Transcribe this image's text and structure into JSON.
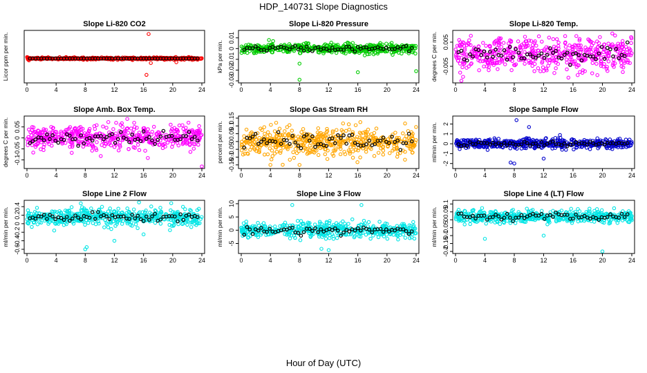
{
  "title": "HDP_140731  Slope Diagnostics",
  "x_axis_title": "Hour of Day (UTC)",
  "chart_data": [
    {
      "id": "co2",
      "type": "scatter",
      "title": "Slope Li-820 CO2",
      "ylabel": "Licor ppm per min.",
      "color": "#ff0000",
      "xlim": [
        0,
        24
      ],
      "xticks": [
        0,
        4,
        8,
        12,
        16,
        20,
        24
      ],
      "ylim": [
        -30,
        35
      ],
      "yticks": [],
      "x": [
        0.3,
        3,
        6,
        9,
        11,
        13,
        16.4,
        16.7,
        18,
        20,
        22,
        23
      ],
      "y": [
        0,
        0,
        0,
        0,
        0,
        0,
        -4,
        32,
        0,
        -3,
        0,
        0
      ],
      "spread": 1.2,
      "outliers": [
        [
          16.7,
          33
        ],
        [
          16.4,
          -22
        ],
        [
          17,
          -6
        ],
        [
          20.5,
          -5
        ]
      ],
      "hourly_mean": [
        0,
        0,
        0,
        0,
        0,
        0,
        0,
        0,
        0,
        0,
        0,
        0,
        0,
        0,
        0,
        0,
        0,
        0,
        0,
        0,
        0,
        0,
        0,
        0,
        0
      ]
    },
    {
      "id": "pressure",
      "type": "scatter",
      "title": "Slope Li-820 Pressure",
      "ylabel": "kPa per min.",
      "color": "#00cc00",
      "xlim": [
        0,
        24
      ],
      "xticks": [
        0,
        4,
        8,
        12,
        16,
        20,
        24
      ],
      "ylim": [
        -0.03,
        0.015
      ],
      "yticks": [
        -0.03,
        -0.02,
        -0.01,
        0,
        0.01
      ],
      "x": [],
      "y": [],
      "center": 0.0,
      "spread": 0.004,
      "outliers": [
        [
          8,
          -0.029
        ],
        [
          16,
          -0.022
        ],
        [
          24,
          -0.021
        ],
        [
          8,
          -0.014
        ],
        [
          3.8,
          0.008
        ]
      ],
      "hourly_mean": []
    },
    {
      "id": "licor_temp",
      "type": "scatter",
      "title": "Slope Li-820 Temp.",
      "ylabel": "degrees C per min.",
      "color": "#ff00ff",
      "xlim": [
        0,
        24
      ],
      "xticks": [
        0,
        4,
        8,
        12,
        16,
        20,
        24
      ],
      "ylim": [
        -0.011,
        0.009
      ],
      "yticks": [
        -0.005,
        0.005
      ],
      "x": [],
      "y": [],
      "center": 0.0,
      "spread": 0.006,
      "outliers": [],
      "hourly_mean": []
    },
    {
      "id": "box_temp",
      "type": "scatter",
      "title": "Slope Amb. Box Temp.",
      "ylabel": "degrees C per min.",
      "color": "#ff00ff",
      "xlim": [
        0,
        24
      ],
      "xticks": [
        0,
        4,
        8,
        12,
        16,
        20,
        24
      ],
      "ylim": [
        -0.13,
        0.09
      ],
      "yticks": [
        -0.1,
        -0.05,
        0,
        0.05
      ],
      "x": [],
      "y": [],
      "center": 0.0,
      "spread": 0.05,
      "outliers": [
        [
          24,
          -0.13
        ]
      ],
      "hourly_mean": []
    },
    {
      "id": "rh",
      "type": "scatter",
      "title": "Slope Gas Stream RH",
      "ylabel": "percent per min.",
      "color": "#ffa500",
      "xlim": [
        0,
        24
      ],
      "xticks": [
        0,
        4,
        8,
        12,
        16,
        20,
        24
      ],
      "ylim": [
        -0.16,
        0.15
      ],
      "yticks": [
        -0.15,
        -0.1,
        -0.05,
        0,
        0.05,
        0.1,
        0.15
      ],
      "x": [],
      "y": [],
      "center": 0.0,
      "spread": 0.08,
      "outliers": [
        [
          8,
          -0.15
        ],
        [
          4,
          -0.15
        ]
      ],
      "hourly_mean": []
    },
    {
      "id": "sample_flow",
      "type": "scatter",
      "title": "Slope Sample Flow",
      "ylabel": "ml/min per min.",
      "color": "#0000cc",
      "xlim": [
        0,
        24
      ],
      "xticks": [
        0,
        4,
        8,
        12,
        16,
        20,
        24
      ],
      "ylim": [
        -2.3,
        2.6
      ],
      "yticks": [
        -2,
        -1,
        0,
        1,
        2
      ],
      "x": [],
      "y": [],
      "center": 0.0,
      "spread": 0.45,
      "outliers": [
        [
          8.3,
          2.4
        ],
        [
          7.5,
          -1.9
        ],
        [
          8,
          -2
        ],
        [
          12,
          -1.5
        ],
        [
          10,
          1.7
        ]
      ],
      "hourly_mean": []
    },
    {
      "id": "line2_flow",
      "type": "scatter",
      "title": "Slope Line 2 Flow",
      "ylabel": "ml/min per min.",
      "color": "#00e5e5",
      "xlim": [
        0,
        24
      ],
      "xticks": [
        0,
        4,
        8,
        12,
        16,
        20,
        24
      ],
      "ylim": [
        -0.65,
        0.5
      ],
      "yticks": [
        -0.6,
        -0.4,
        -0.2,
        0,
        0.2,
        0.4
      ],
      "x": [],
      "y": [],
      "center": 0.15,
      "spread": 0.18,
      "outliers": [
        [
          8,
          -0.6
        ],
        [
          8.2,
          -0.55
        ],
        [
          12,
          -0.4
        ],
        [
          16,
          -0.25
        ],
        [
          19.8,
          0.48
        ]
      ],
      "hourly_mean": []
    },
    {
      "id": "line3_flow",
      "type": "scatter",
      "title": "Slope Line 3 Flow",
      "ylabel": "ml/min per min.",
      "color": "#00e5e5",
      "xlim": [
        0,
        24
      ],
      "xticks": [
        0,
        4,
        8,
        12,
        16,
        20,
        24
      ],
      "ylim": [
        -8,
        10.5
      ],
      "yticks": [
        -5,
        0,
        5,
        10
      ],
      "x": [],
      "y": [],
      "center": 0.0,
      "spread": 2.5,
      "outliers": [
        [
          7,
          9.5
        ],
        [
          16.5,
          9.5
        ],
        [
          11,
          -7
        ],
        [
          12,
          -7.5
        ]
      ],
      "hourly_mean": []
    },
    {
      "id": "line4_flow",
      "type": "scatter",
      "title": "Slope Line 4 (LT) Flow",
      "ylabel": "ml/min per min.",
      "color": "#00e5e5",
      "xlim": [
        0,
        24
      ],
      "xticks": [
        0,
        4,
        8,
        12,
        16,
        20,
        24
      ],
      "ylim": [
        -0.2,
        0.11
      ],
      "yticks": [
        -0.2,
        -0.15,
        -0.1,
        -0.05,
        0,
        0.05,
        0.1
      ],
      "x": [],
      "y": [],
      "center": 0.02,
      "spread": 0.035,
      "outliers": [
        [
          4,
          -0.12
        ],
        [
          12,
          -0.1
        ],
        [
          20,
          -0.2
        ]
      ],
      "hourly_mean": []
    }
  ]
}
